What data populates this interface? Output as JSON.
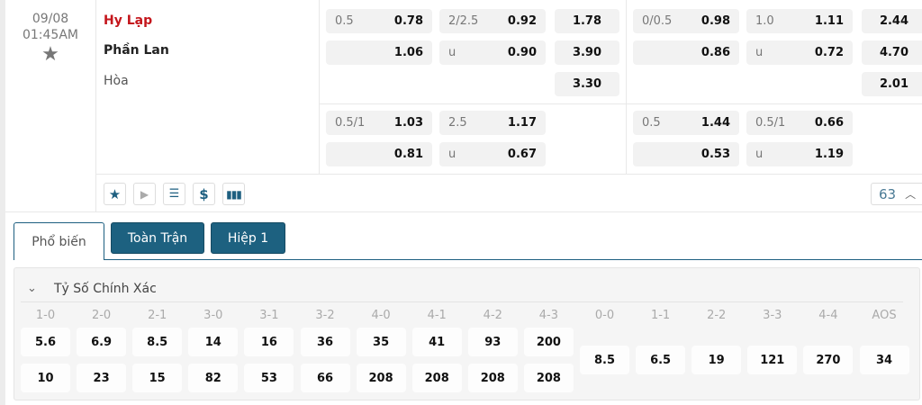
{
  "match": {
    "date": "09/08",
    "time": "01:45AM",
    "home": "Hy Lạp",
    "away": "Phần Lan",
    "draw": "Hòa",
    "home_color": "#c4161c",
    "more_count": "63"
  },
  "odds": {
    "full_main": {
      "handicap": {
        "line": "0.5",
        "home": "0.78",
        "away": "1.06"
      },
      "over_under": {
        "line": "2/2.5",
        "over": "0.92",
        "under_label": "u",
        "under": "0.90"
      },
      "x12": {
        "home": "1.78",
        "away": "3.90",
        "draw": "3.30"
      }
    },
    "full_alt": {
      "handicap": {
        "line": "0.5/1",
        "home": "1.03",
        "away": "0.81"
      },
      "over_under": {
        "line": "2.5",
        "over": "1.17",
        "under_label": "u",
        "under": "0.67"
      }
    },
    "half_main": {
      "handicap": {
        "line": "0/0.5",
        "home": "0.98",
        "away": "0.86"
      },
      "over_under": {
        "line": "1.0",
        "over": "1.11",
        "under_label": "u",
        "under": "0.72"
      },
      "x12": {
        "home": "2.44",
        "away": "4.70",
        "draw": "2.01"
      }
    },
    "half_alt": {
      "handicap": {
        "line": "0.5",
        "home": "1.44",
        "away": "0.53"
      },
      "over_under": {
        "line": "0.5/1",
        "over": "0.66",
        "under_label": "u",
        "under": "1.19"
      }
    }
  },
  "toolbar": {
    "icons": [
      "star-icon",
      "play-icon",
      "ticket-icon",
      "dollar-icon",
      "stats-icon"
    ]
  },
  "tabs": [
    {
      "label": "Phổ biến",
      "active": true
    },
    {
      "label": "Toàn Trận"
    },
    {
      "label": "Hiệp 1"
    }
  ],
  "correct_score": {
    "title": "Tỷ Số Chính Xác",
    "columns": [
      {
        "score": "1-0",
        "home": "5.6",
        "away": "10"
      },
      {
        "score": "2-0",
        "home": "6.9",
        "away": "23"
      },
      {
        "score": "2-1",
        "home": "8.5",
        "away": "15"
      },
      {
        "score": "3-0",
        "home": "14",
        "away": "82"
      },
      {
        "score": "3-1",
        "home": "16",
        "away": "53"
      },
      {
        "score": "3-2",
        "home": "36",
        "away": "66"
      },
      {
        "score": "4-0",
        "home": "35",
        "away": "208"
      },
      {
        "score": "4-1",
        "home": "41",
        "away": "208"
      },
      {
        "score": "4-2",
        "home": "93",
        "away": "208"
      },
      {
        "score": "4-3",
        "home": "200",
        "away": "208"
      },
      {
        "score": "0-0",
        "draw": "8.5"
      },
      {
        "score": "1-1",
        "draw": "6.5"
      },
      {
        "score": "2-2",
        "draw": "19"
      },
      {
        "score": "3-3",
        "draw": "121"
      },
      {
        "score": "4-4",
        "draw": "270"
      },
      {
        "score": "AOS",
        "draw": "34"
      }
    ]
  }
}
